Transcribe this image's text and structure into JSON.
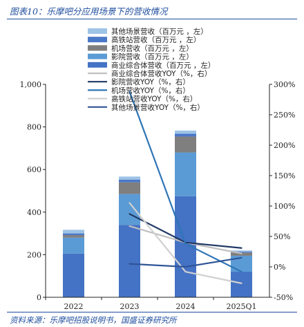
{
  "page": {
    "title": "图表10：乐摩吧分应用场景下的营收情况",
    "source": "资料来源：乐摩吧招股说明书，国盛证券研究所"
  },
  "chart_data": {
    "type": "bar",
    "stacked": true,
    "categories": [
      "2022",
      "2023",
      "2024",
      "2025Q1"
    ],
    "y_left": {
      "lim": [
        0,
        1000
      ],
      "ticks": [
        0,
        200,
        400,
        600,
        800,
        1000
      ],
      "tick_labels": [
        "0",
        "200",
        "400",
        "600",
        "800",
        "1,000"
      ]
    },
    "y_right": {
      "lim": [
        -50,
        300
      ],
      "ticks": [
        -50,
        0,
        50,
        100,
        150,
        200,
        250,
        300
      ],
      "tick_labels": [
        "-50%",
        "0%",
        "50%",
        "100%",
        "150%",
        "200%",
        "250%",
        "300%"
      ]
    },
    "grid": false,
    "legend_position": "top-center",
    "bar_series": [
      {
        "name": "商业综合体营收（百万元 ，左）",
        "color": "#4472c4",
        "values": [
          205,
          340,
          475,
          120
        ]
      },
      {
        "name": "影院营收（百万元 ，左）",
        "color": "#5b9bd5",
        "values": [
          75,
          145,
          205,
          75
        ]
      },
      {
        "name": "机场营收（百万元 ，左）",
        "color": "#7f7f7f",
        "values": [
          12,
          55,
          75,
          15
        ]
      },
      {
        "name": "高铁站营收（百万元 ，左）",
        "color": "#4a78c8",
        "values": [
          8,
          12,
          13,
          4
        ]
      },
      {
        "name": "其他场景营收（百万元 ，左）",
        "color": "#9dc3e6",
        "values": [
          17,
          15,
          15,
          6
        ]
      }
    ],
    "line_series": [
      {
        "name": "商业综合体营收YOY（%，右）",
        "color": "#bfbfbf",
        "values": [
          null,
          67,
          40,
          22
        ]
      },
      {
        "name": "影院营收YOY（%，右）",
        "color": "#203864",
        "values": [
          null,
          87,
          40,
          31
        ]
      },
      {
        "name": "机场营收YOY（%，右）",
        "color": "#2e75b6",
        "values": [
          null,
          288,
          38,
          -8
        ]
      },
      {
        "name": "高铁站营收YOY（%，右）",
        "color": "#d0d0d0",
        "values": [
          null,
          105,
          -8,
          -27
        ]
      },
      {
        "name": "其他场景营收YOY（%，右）",
        "color": "#2f5597",
        "values": [
          null,
          5,
          0,
          15
        ]
      }
    ],
    "legend": [
      {
        "label": "其他场景营收（百万元 ，左）",
        "kind": "bar",
        "color": "#9dc3e6"
      },
      {
        "label": "高铁站营收（百万元 ，左）",
        "kind": "bar",
        "color": "#4a78c8"
      },
      {
        "label": "机场营收（百万元 ，左）",
        "kind": "bar",
        "color": "#7f7f7f"
      },
      {
        "label": "影院营收（百万元 ，左）",
        "kind": "bar",
        "color": "#5b9bd5"
      },
      {
        "label": "商业综合体营收（百万元 ，左）",
        "kind": "bar",
        "color": "#4472c4"
      },
      {
        "label": "商业综合体营收YOY（%，右）",
        "kind": "line",
        "color": "#bfbfbf"
      },
      {
        "label": "影院营收YOY（%，右）",
        "kind": "line",
        "color": "#203864"
      },
      {
        "label": "机场营收YOY（%，右）",
        "kind": "line",
        "color": "#2e75b6"
      },
      {
        "label": "高铁站营收YOY（%，右）",
        "kind": "line",
        "color": "#d0d0d0"
      },
      {
        "label": "其他场景营收YOY（%，右）",
        "kind": "line",
        "color": "#2f5597"
      }
    ]
  }
}
